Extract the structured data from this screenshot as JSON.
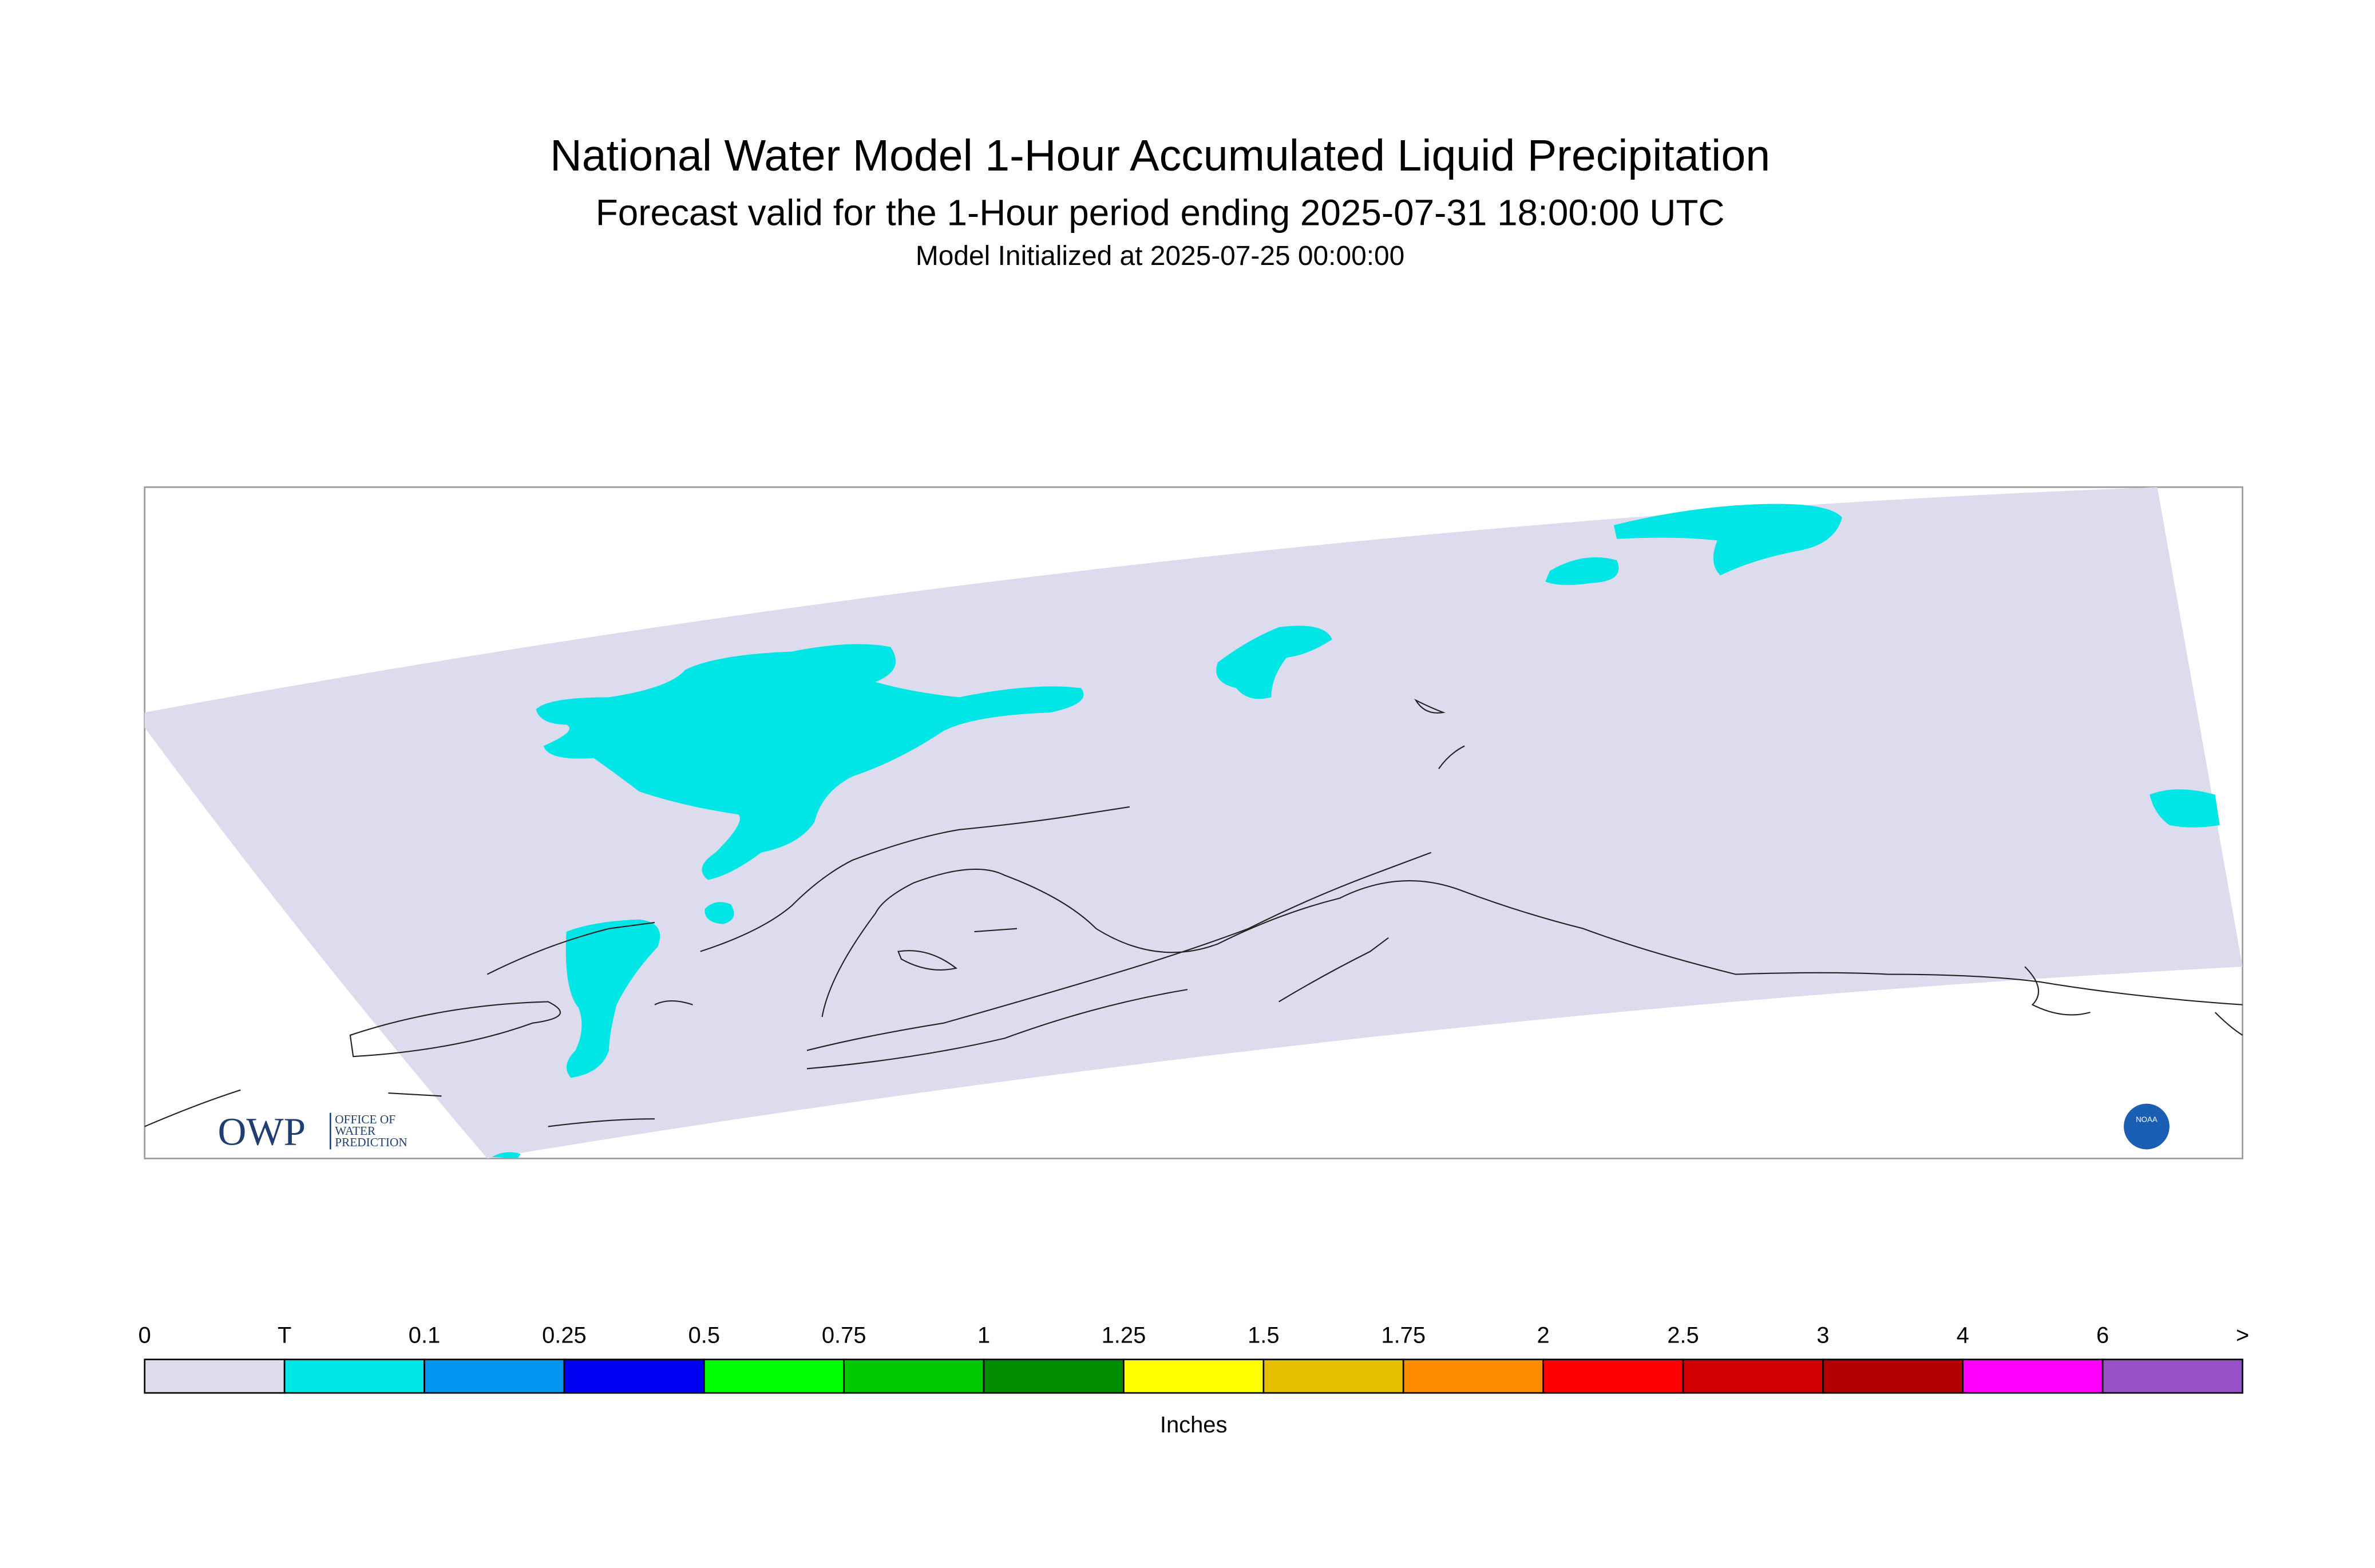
{
  "header": {
    "title": "National Water Model 1-Hour Accumulated Liquid Precipitation",
    "subtitle": "Forecast valid for the 1-Hour period ending 2025-07-31 18:00:00 UTC",
    "initialized": "Model Initialized at 2025-07-25 00:00:00"
  },
  "logo": {
    "acronym": "OWP",
    "lines": [
      "OFFICE OF",
      "WATER",
      "PREDICTION"
    ],
    "agency": "NOAA"
  },
  "legend": {
    "labels": [
      "0",
      "T",
      "0.1",
      "0.25",
      "0.5",
      "0.75",
      "1",
      "1.25",
      "1.5",
      "1.75",
      "2",
      "2.5",
      "3",
      "4",
      "6",
      ">"
    ],
    "colors": [
      "#dcdcee",
      "#00e6e6",
      "#0096f0",
      "#0000f0",
      "#00ff00",
      "#00c800",
      "#008c00",
      "#ffff00",
      "#e6be00",
      "#ff8c00",
      "#ff0000",
      "#d20000",
      "#b40000",
      "#ff00ff",
      "#9650c8"
    ],
    "unit": "Inches"
  }
}
